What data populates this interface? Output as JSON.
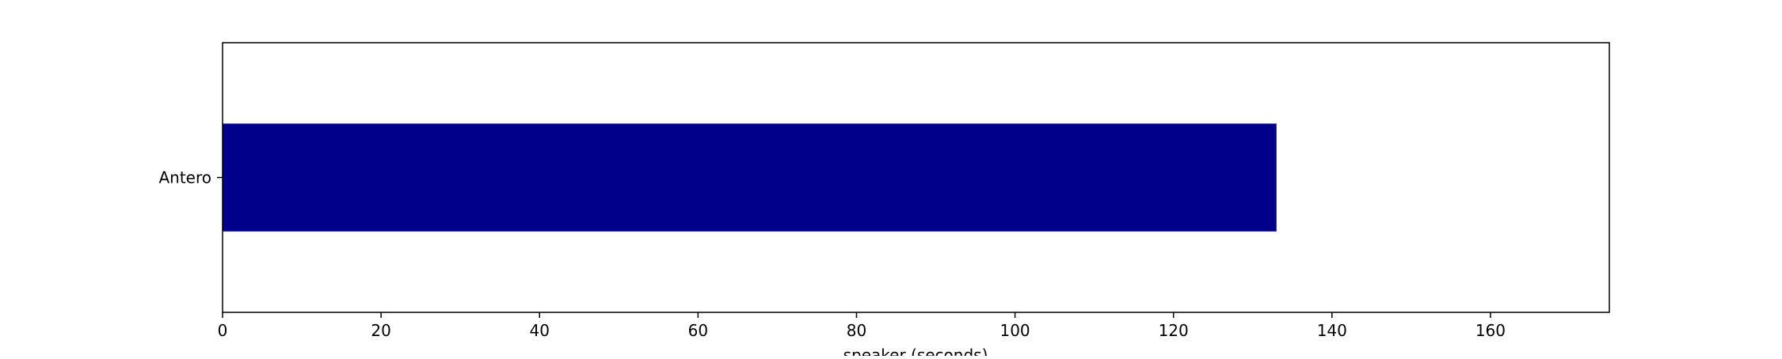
{
  "chart_data": {
    "type": "bar",
    "orientation": "horizontal",
    "title": "",
    "xlabel": "speaker (seconds)",
    "ylabel": "",
    "categories": [
      "Antero"
    ],
    "values": [
      133
    ],
    "xlim": [
      0,
      175
    ],
    "xticks": [
      0,
      20,
      40,
      60,
      80,
      100,
      120,
      140,
      160
    ],
    "grid": false,
    "legend": "none",
    "bar_color": "#00008B"
  }
}
